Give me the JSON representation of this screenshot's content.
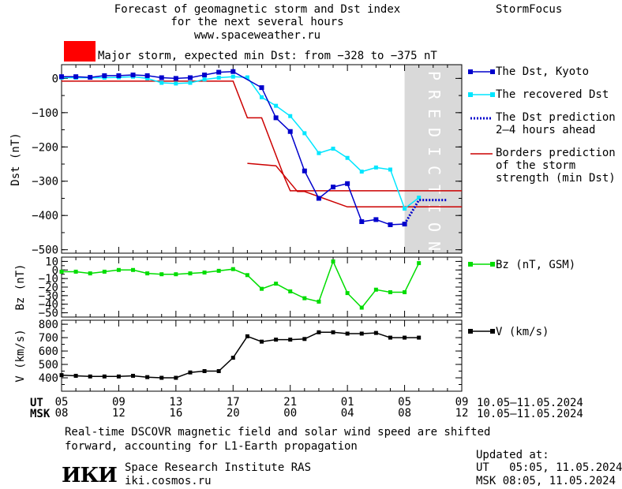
{
  "header": {
    "title_line1": "Forecast of geomagnetic storm and Dst index",
    "title_line2": "for the next several hours",
    "title_line3": "www.spaceweather.ru",
    "brand": "StormFocus",
    "storm_label": "Major storm, expected min Dst: from −328 to −375 nT"
  },
  "legend": {
    "dst_kyoto": "The Dst, Kyoto",
    "dst_recovered": "The recovered Dst",
    "dst_prediction_1": "The Dst prediction",
    "dst_prediction_2": "2–4 hours ahead",
    "borders_1": "Borders prediction",
    "borders_2": "of the storm",
    "borders_3": "strength (min Dst)",
    "bz": "Bz (nT, GSM)",
    "v": "V (km/s)"
  },
  "axes": {
    "dst_ylabel": "Dst (nT)",
    "bz_ylabel": "Bz (nT)",
    "v_ylabel": "V (km/s)",
    "prediction_label": "PREDICTION",
    "ut_label": "UT",
    "msk_label": "MSK",
    "ut_ticks": [
      "05",
      "09",
      "13",
      "17",
      "21",
      "01",
      "05",
      "09"
    ],
    "msk_ticks": [
      "08",
      "12",
      "16",
      "20",
      "00",
      "04",
      "08",
      "12"
    ],
    "ut_range": "10.05–11.05.2024",
    "msk_range": "10.05–11.05.2024"
  },
  "footer": {
    "note_line1": "Real-time DSCOVR magnetic field and solar wind speed are shifted",
    "note_line2": "forward, accounting for L1-Earth propagation",
    "institute": "Space Research Institute RAS",
    "site": "iki.cosmos.ru",
    "logo_text": "ИКИ",
    "updated_label": "Updated at:",
    "updated_ut": "UT   05:05, 11.05.2024",
    "updated_msk": "MSK 08:05, 11.05.2024"
  },
  "colors": {
    "kyoto": "#0000cc",
    "recovered": "#00e6ff",
    "prediction": "#0000cc",
    "borders": "#cc0000",
    "bz": "#00dd00",
    "v": "#000000",
    "storm_box": "#ff0000",
    "prediction_zone": "#d9d9d9"
  },
  "chart_data": [
    {
      "type": "line",
      "panel": "dst",
      "ylabel": "Dst (nT)",
      "ylim": [
        -510,
        40
      ],
      "yticks": [
        0,
        -100,
        -200,
        -300,
        -400,
        -500
      ],
      "xlim_hours_ut": [
        5,
        33
      ],
      "prediction_zone_hours_ut": [
        29,
        33
      ],
      "series": [
        {
          "name": "The Dst, Kyoto",
          "x": [
            5,
            6,
            7,
            8,
            9,
            10,
            11,
            12,
            13,
            14,
            15,
            16,
            17,
            19,
            20,
            21,
            22,
            23,
            24,
            25,
            26,
            27,
            28,
            29
          ],
          "values": [
            5,
            5,
            3,
            8,
            8,
            10,
            8,
            2,
            0,
            2,
            10,
            18,
            20,
            -27,
            -115,
            -155,
            -270,
            -350,
            -317,
            -307,
            -418,
            -412,
            -427,
            -425
          ]
        },
        {
          "name": "The recovered Dst",
          "x": [
            5,
            6,
            7,
            8,
            9,
            10,
            11,
            12,
            13,
            14,
            15,
            16,
            17,
            18,
            19,
            20,
            21,
            22,
            23,
            24,
            25,
            26,
            27,
            28,
            29,
            30
          ],
          "values": [
            2,
            2,
            2,
            2,
            3,
            5,
            0,
            -13,
            -15,
            -13,
            -3,
            2,
            5,
            3,
            -55,
            -80,
            -110,
            -160,
            -218,
            -205,
            -232,
            -272,
            -260,
            -266,
            -380,
            -348
          ]
        },
        {
          "name": "The Dst prediction",
          "x": [
            29,
            30,
            31,
            32
          ],
          "values": [
            -425,
            -355,
            -355,
            -355
          ]
        },
        {
          "name": "Borders prediction",
          "x": [
            5,
            17,
            18,
            19,
            20.6,
            21,
            33
          ],
          "values": [
            -8,
            -8,
            -115,
            -115,
            -290,
            -328,
            -328
          ]
        },
        {
          "name": "Borders prediction",
          "x": [
            18,
            20,
            21.5,
            22,
            25,
            33
          ],
          "values": [
            -248,
            -255,
            -330,
            -330,
            -375,
            -375
          ]
        }
      ]
    },
    {
      "type": "line",
      "panel": "bz",
      "ylabel": "Bz (nT)",
      "ylim": [
        -55,
        15
      ],
      "yticks": [
        10,
        0,
        -10,
        -20,
        -30,
        -40,
        -50
      ],
      "series": [
        {
          "name": "Bz (nT, GSM)",
          "x": [
            5,
            6,
            7,
            8,
            9,
            10,
            11,
            12,
            13,
            14,
            15,
            16,
            17,
            18,
            19,
            20,
            21,
            22,
            23,
            24,
            25,
            26,
            27,
            28,
            29,
            30
          ],
          "values": [
            -2,
            -2,
            -4,
            -2,
            0,
            0,
            -4,
            -5,
            -5,
            -4,
            -3,
            -1,
            1,
            -6,
            -22,
            -16,
            -25,
            -33,
            -37,
            10,
            -27,
            -44,
            -23,
            -26,
            -26,
            8
          ]
        }
      ]
    },
    {
      "type": "line",
      "panel": "v",
      "ylabel": "V (km/s)",
      "ylim": [
        300,
        830
      ],
      "yticks": [
        400,
        500,
        600,
        700,
        800
      ],
      "series": [
        {
          "name": "V (km/s)",
          "x": [
            5,
            6,
            7,
            8,
            9,
            10,
            11,
            12,
            13,
            14,
            15,
            16,
            17,
            18,
            19,
            20,
            21,
            22,
            23,
            24,
            25,
            26,
            27,
            28,
            29,
            30
          ],
          "values": [
            420,
            415,
            410,
            410,
            410,
            415,
            405,
            400,
            400,
            440,
            450,
            450,
            550,
            710,
            670,
            685,
            685,
            690,
            740,
            740,
            730,
            730,
            735,
            700,
            700,
            700
          ]
        }
      ]
    }
  ]
}
